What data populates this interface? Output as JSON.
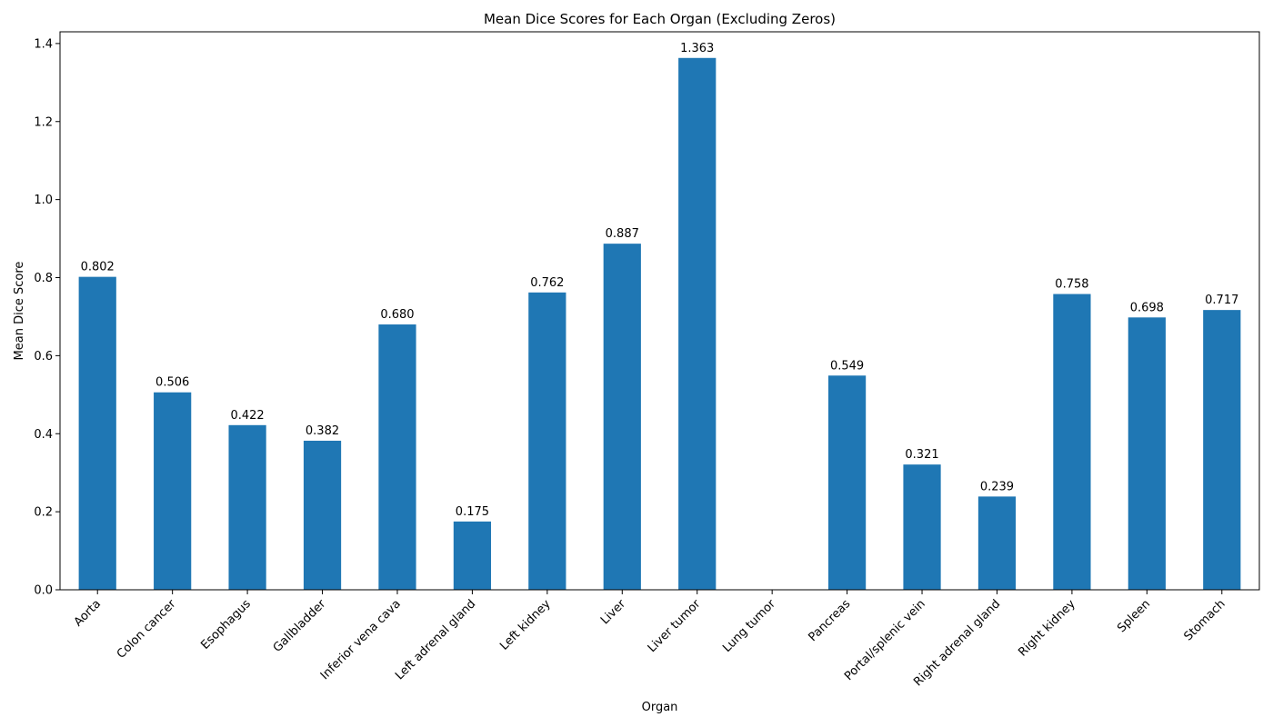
{
  "chart_data": {
    "type": "bar",
    "title": "Mean Dice Scores for Each Organ (Excluding Zeros)",
    "xlabel": "Organ",
    "ylabel": "Mean Dice Score",
    "categories": [
      "Aorta",
      "Colon cancer",
      "Esophagus",
      "Gallbladder",
      "Inferior vena cava",
      "Left adrenal gland",
      "Left kidney",
      "Liver",
      "Liver tumor",
      "Lung tumor",
      "Pancreas",
      "Portal/splenic vein",
      "Right adrenal gland",
      "Right kidney",
      "Spleen",
      "Stomach"
    ],
    "values": [
      0.802,
      0.506,
      0.422,
      0.382,
      0.68,
      0.175,
      0.762,
      0.887,
      1.363,
      null,
      0.549,
      0.321,
      0.239,
      0.758,
      0.698,
      0.717
    ],
    "data_labels": [
      "0.802",
      "0.506",
      "0.422",
      "0.382",
      "0.680",
      "0.175",
      "0.762",
      "0.887",
      "1.363",
      "",
      "0.549",
      "0.321",
      "0.239",
      "0.758",
      "0.698",
      "0.717"
    ],
    "ylim": [
      0,
      1.43
    ],
    "yticks": [
      0.0,
      0.2,
      0.4,
      0.6,
      0.8,
      1.0,
      1.2,
      1.4
    ],
    "ytick_labels": [
      "0.0",
      "0.2",
      "0.4",
      "0.6",
      "0.8",
      "1.0",
      "1.2",
      "1.4"
    ],
    "bar_color": "#1f77b4",
    "grid": false,
    "legend": "none"
  }
}
